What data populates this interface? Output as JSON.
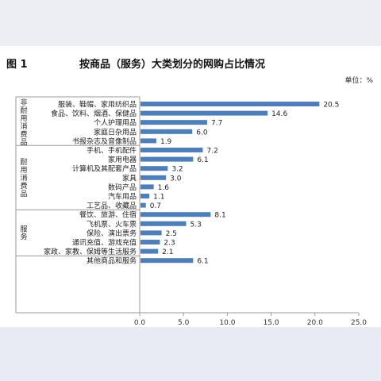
{
  "figure": {
    "label": "图 1",
    "title": "按商品（服务）大类划分的网购占比情况",
    "unit": "单位：%"
  },
  "chart_data": {
    "type": "bar",
    "orientation": "horizontal",
    "title": "按商品（服务）大类划分的网购占比情况",
    "unit": "单位：%",
    "xlim": [
      0,
      25
    ],
    "xticks": [
      "0.0",
      "5.0",
      "10.0",
      "15.0",
      "20.0",
      "25.0"
    ],
    "bar_color": "#4f7fb8",
    "groups": [
      {
        "name": "非耐用消费品",
        "items": [
          {
            "label": "服装、鞋帽、家用纺织品",
            "value": 20.5
          },
          {
            "label": "食品、饮料、烟酒、保健品",
            "value": 14.6
          },
          {
            "label": "个人护理用品",
            "value": 7.7
          },
          {
            "label": "家庭日杂用品",
            "value": 6.0
          },
          {
            "label": "书报杂志及音像制品",
            "value": 1.9
          }
        ]
      },
      {
        "name": "耐用消费品",
        "items": [
          {
            "label": "手机、手机配件",
            "value": 7.2
          },
          {
            "label": "家用电器",
            "value": 6.1
          },
          {
            "label": "计算机及其配套产品",
            "value": 3.2
          },
          {
            "label": "家具",
            "value": 3.0
          },
          {
            "label": "数码产品",
            "value": 1.6
          },
          {
            "label": "汽车用品",
            "value": 1.1
          },
          {
            "label": "工艺品、收藏品",
            "value": 0.7
          }
        ]
      },
      {
        "name": "服务",
        "items": [
          {
            "label": "餐饮、旅游、住宿",
            "value": 8.1
          },
          {
            "label": "飞机票、火车票",
            "value": 5.3
          },
          {
            "label": "保险、演出票务",
            "value": 2.5
          },
          {
            "label": "通讯充值、游戏充值",
            "value": 2.3
          },
          {
            "label": "家政、家教、保姆等生活服务",
            "value": 2.1
          }
        ]
      },
      {
        "name": "",
        "items": [
          {
            "label": "其他商品和服务",
            "value": 6.1
          }
        ]
      }
    ]
  }
}
